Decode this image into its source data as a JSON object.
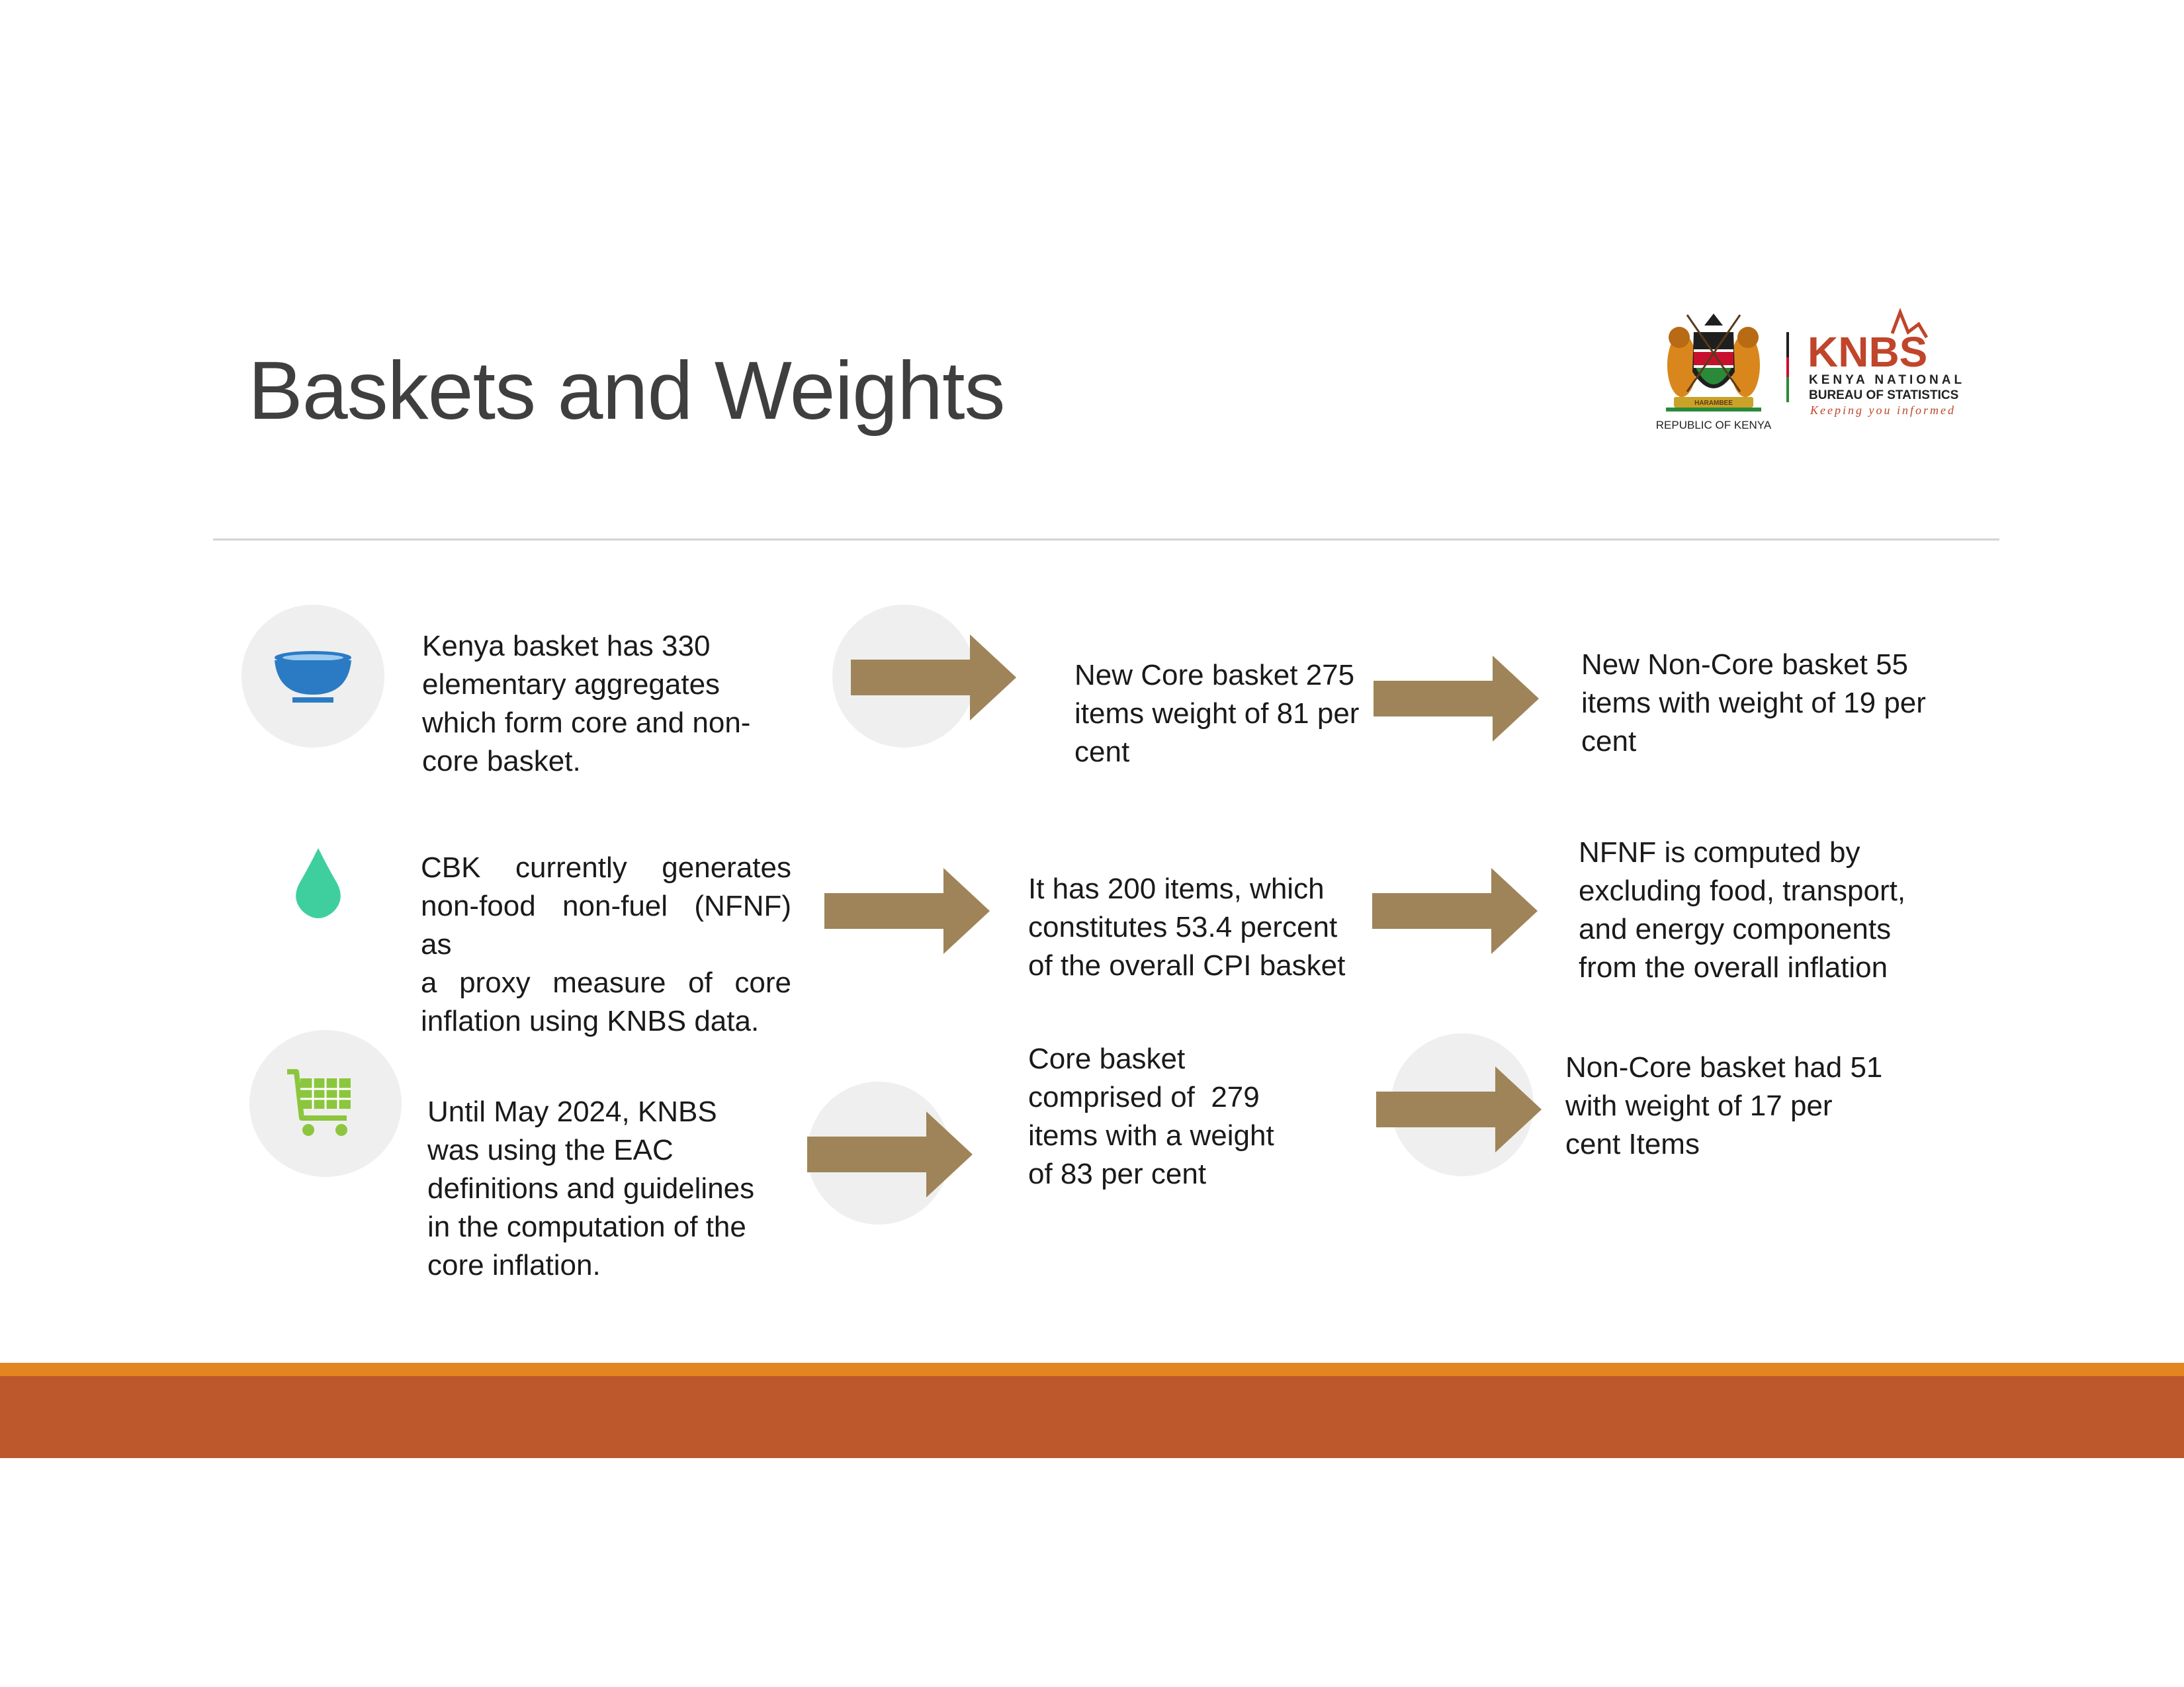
{
  "slide": {
    "title": "Baskets and Weights"
  },
  "logo": {
    "republic_label": "REPUBLIC OF KENYA",
    "motto_banner": "HARAMBEE",
    "brand": "KNBS",
    "org_line1": "KENYA NATIONAL",
    "org_line2": "BUREAU OF STATISTICS",
    "tagline": "Keeping you informed"
  },
  "rows": [
    {
      "icon": "bowl-icon",
      "icon_color": "#2b7bc4",
      "lead_lines": [
        "Kenya basket has 330",
        "elementary aggregates",
        "which form core and non-",
        "core basket."
      ],
      "middle_lines": [
        "New Core basket 275",
        "items weight of 81 per",
        "cent"
      ],
      "right_lines": [
        "New Non-Core basket 55",
        "items with weight of 19 per",
        "cent"
      ]
    },
    {
      "icon": "drop-icon",
      "icon_color": "#3fcf9f",
      "lead_lines": [
        "CBK currently generates",
        "non-food non-fuel (NFNF) as",
        "a proxy measure of core",
        "inflation using KNBS data."
      ],
      "middle_lines": [
        "It has 200 items, which",
        "constitutes 53.4 percent",
        "of the overall CPI basket"
      ],
      "right_lines": [
        "NFNF is computed by",
        "excluding food, transport,",
        "and energy components",
        "from the overall inflation"
      ]
    },
    {
      "icon": "cart-icon",
      "icon_color": "#8cc63e",
      "lead_lines": [
        "Until May 2024, KNBS",
        "was using the EAC",
        "definitions and guidelines",
        "in the computation of the",
        "core inflation."
      ],
      "middle_lines": [
        "Core basket",
        "comprised of  279",
        "items with a weight",
        "of 83 per cent"
      ],
      "right_lines": [
        "Non-Core basket had 51",
        "with weight of 17 per",
        "cent Items"
      ]
    }
  ],
  "colors": {
    "arrow": "#9e8458",
    "band_top": "#e3861f",
    "band_main": "#bc582c",
    "circle_bg": "#efefef",
    "rule": "#d4d4d4"
  }
}
